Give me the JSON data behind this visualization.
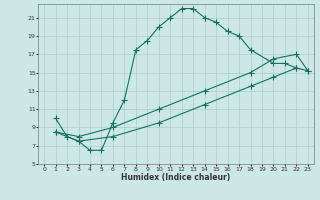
{
  "xlabel": "Humidex (Indice chaleur)",
  "bg_color": "#cce8e4",
  "grid_color": "#aaccca",
  "line_color": "#1a6e64",
  "xlim": [
    -0.5,
    23.5
  ],
  "ylim": [
    5,
    22.5
  ],
  "xticks": [
    0,
    1,
    2,
    3,
    4,
    5,
    6,
    7,
    8,
    9,
    10,
    11,
    12,
    13,
    14,
    15,
    16,
    17,
    18,
    19,
    20,
    21,
    22,
    23
  ],
  "yticks": [
    5,
    7,
    9,
    11,
    13,
    15,
    17,
    19,
    21
  ],
  "line1_x": [
    1,
    2,
    3,
    4,
    5,
    6,
    7,
    8,
    9,
    10,
    11,
    12,
    13,
    14,
    15,
    16,
    17,
    18,
    20,
    21,
    22
  ],
  "line1_y": [
    10,
    8,
    7.5,
    6.5,
    6.5,
    9.5,
    12,
    17.5,
    18.5,
    20,
    21,
    22,
    22,
    21,
    20.5,
    19.5,
    19,
    17.5,
    16,
    16,
    15.5
  ],
  "line2_x": [
    1,
    3,
    6,
    10,
    14,
    18,
    20,
    22,
    23
  ],
  "line2_y": [
    8.5,
    8,
    9,
    11,
    13,
    15,
    16.5,
    17,
    15.2
  ],
  "line3_x": [
    1,
    3,
    6,
    10,
    14,
    18,
    20,
    22,
    23
  ],
  "line3_y": [
    8.5,
    7.5,
    8,
    9.5,
    11.5,
    13.5,
    14.5,
    15.5,
    15.2
  ]
}
